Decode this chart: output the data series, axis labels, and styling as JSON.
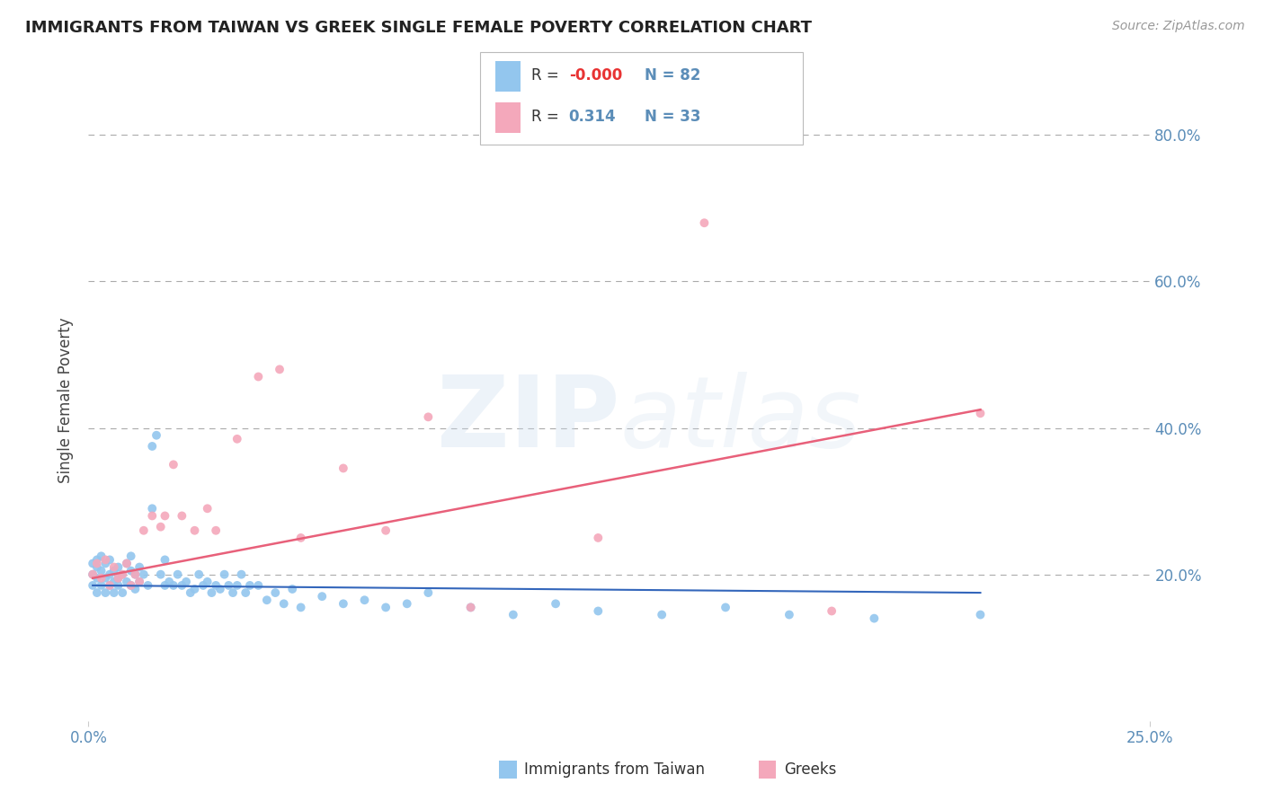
{
  "title": "IMMIGRANTS FROM TAIWAN VS GREEK SINGLE FEMALE POVERTY CORRELATION CHART",
  "source": "Source: ZipAtlas.com",
  "ylabel": "Single Female Poverty",
  "xlim": [
    0.0,
    0.25
  ],
  "ylim": [
    0.0,
    0.875
  ],
  "yticks": [
    0.2,
    0.4,
    0.6,
    0.8
  ],
  "ytick_labels": [
    "20.0%",
    "40.0%",
    "60.0%",
    "80.0%"
  ],
  "color_blue": "#93C6EE",
  "color_pink": "#F4A8BB",
  "color_blue_line": "#3366BB",
  "color_pink_line": "#E8607A",
  "color_axis_text": "#5B8DB8",
  "background": "#FFFFFF",
  "blue_dots_x": [
    0.001,
    0.001,
    0.001,
    0.002,
    0.002,
    0.002,
    0.002,
    0.003,
    0.003,
    0.003,
    0.004,
    0.004,
    0.004,
    0.005,
    0.005,
    0.005,
    0.006,
    0.006,
    0.006,
    0.007,
    0.007,
    0.007,
    0.008,
    0.008,
    0.009,
    0.009,
    0.01,
    0.01,
    0.01,
    0.011,
    0.011,
    0.012,
    0.012,
    0.013,
    0.014,
    0.015,
    0.015,
    0.016,
    0.017,
    0.018,
    0.018,
    0.019,
    0.02,
    0.021,
    0.022,
    0.023,
    0.024,
    0.025,
    0.026,
    0.027,
    0.028,
    0.029,
    0.03,
    0.031,
    0.032,
    0.033,
    0.034,
    0.035,
    0.036,
    0.037,
    0.038,
    0.04,
    0.042,
    0.044,
    0.046,
    0.048,
    0.05,
    0.055,
    0.06,
    0.065,
    0.07,
    0.075,
    0.08,
    0.09,
    0.1,
    0.11,
    0.12,
    0.135,
    0.15,
    0.165,
    0.185,
    0.21
  ],
  "blue_dots_y": [
    0.2,
    0.215,
    0.185,
    0.22,
    0.195,
    0.175,
    0.21,
    0.205,
    0.185,
    0.225,
    0.195,
    0.215,
    0.175,
    0.2,
    0.185,
    0.22,
    0.205,
    0.19,
    0.175,
    0.21,
    0.195,
    0.185,
    0.2,
    0.175,
    0.215,
    0.19,
    0.205,
    0.185,
    0.225,
    0.2,
    0.18,
    0.21,
    0.19,
    0.2,
    0.185,
    0.29,
    0.375,
    0.39,
    0.2,
    0.185,
    0.22,
    0.19,
    0.185,
    0.2,
    0.185,
    0.19,
    0.175,
    0.18,
    0.2,
    0.185,
    0.19,
    0.175,
    0.185,
    0.18,
    0.2,
    0.185,
    0.175,
    0.185,
    0.2,
    0.175,
    0.185,
    0.185,
    0.165,
    0.175,
    0.16,
    0.18,
    0.155,
    0.17,
    0.16,
    0.165,
    0.155,
    0.16,
    0.175,
    0.155,
    0.145,
    0.16,
    0.15,
    0.145,
    0.155,
    0.145,
    0.14,
    0.145
  ],
  "pink_dots_x": [
    0.001,
    0.002,
    0.003,
    0.004,
    0.005,
    0.006,
    0.007,
    0.008,
    0.009,
    0.01,
    0.011,
    0.012,
    0.013,
    0.015,
    0.017,
    0.018,
    0.02,
    0.022,
    0.025,
    0.028,
    0.03,
    0.035,
    0.04,
    0.045,
    0.05,
    0.06,
    0.07,
    0.08,
    0.09,
    0.12,
    0.145,
    0.175,
    0.21
  ],
  "pink_dots_y": [
    0.2,
    0.215,
    0.195,
    0.22,
    0.185,
    0.21,
    0.195,
    0.2,
    0.215,
    0.185,
    0.2,
    0.19,
    0.26,
    0.28,
    0.265,
    0.28,
    0.35,
    0.28,
    0.26,
    0.29,
    0.26,
    0.385,
    0.47,
    0.48,
    0.25,
    0.345,
    0.26,
    0.415,
    0.155,
    0.25,
    0.68,
    0.15,
    0.42
  ],
  "blue_line_x": [
    0.001,
    0.21
  ],
  "blue_line_y": [
    0.185,
    0.175
  ],
  "pink_line_x": [
    0.001,
    0.21
  ],
  "pink_line_y": [
    0.195,
    0.425
  ]
}
